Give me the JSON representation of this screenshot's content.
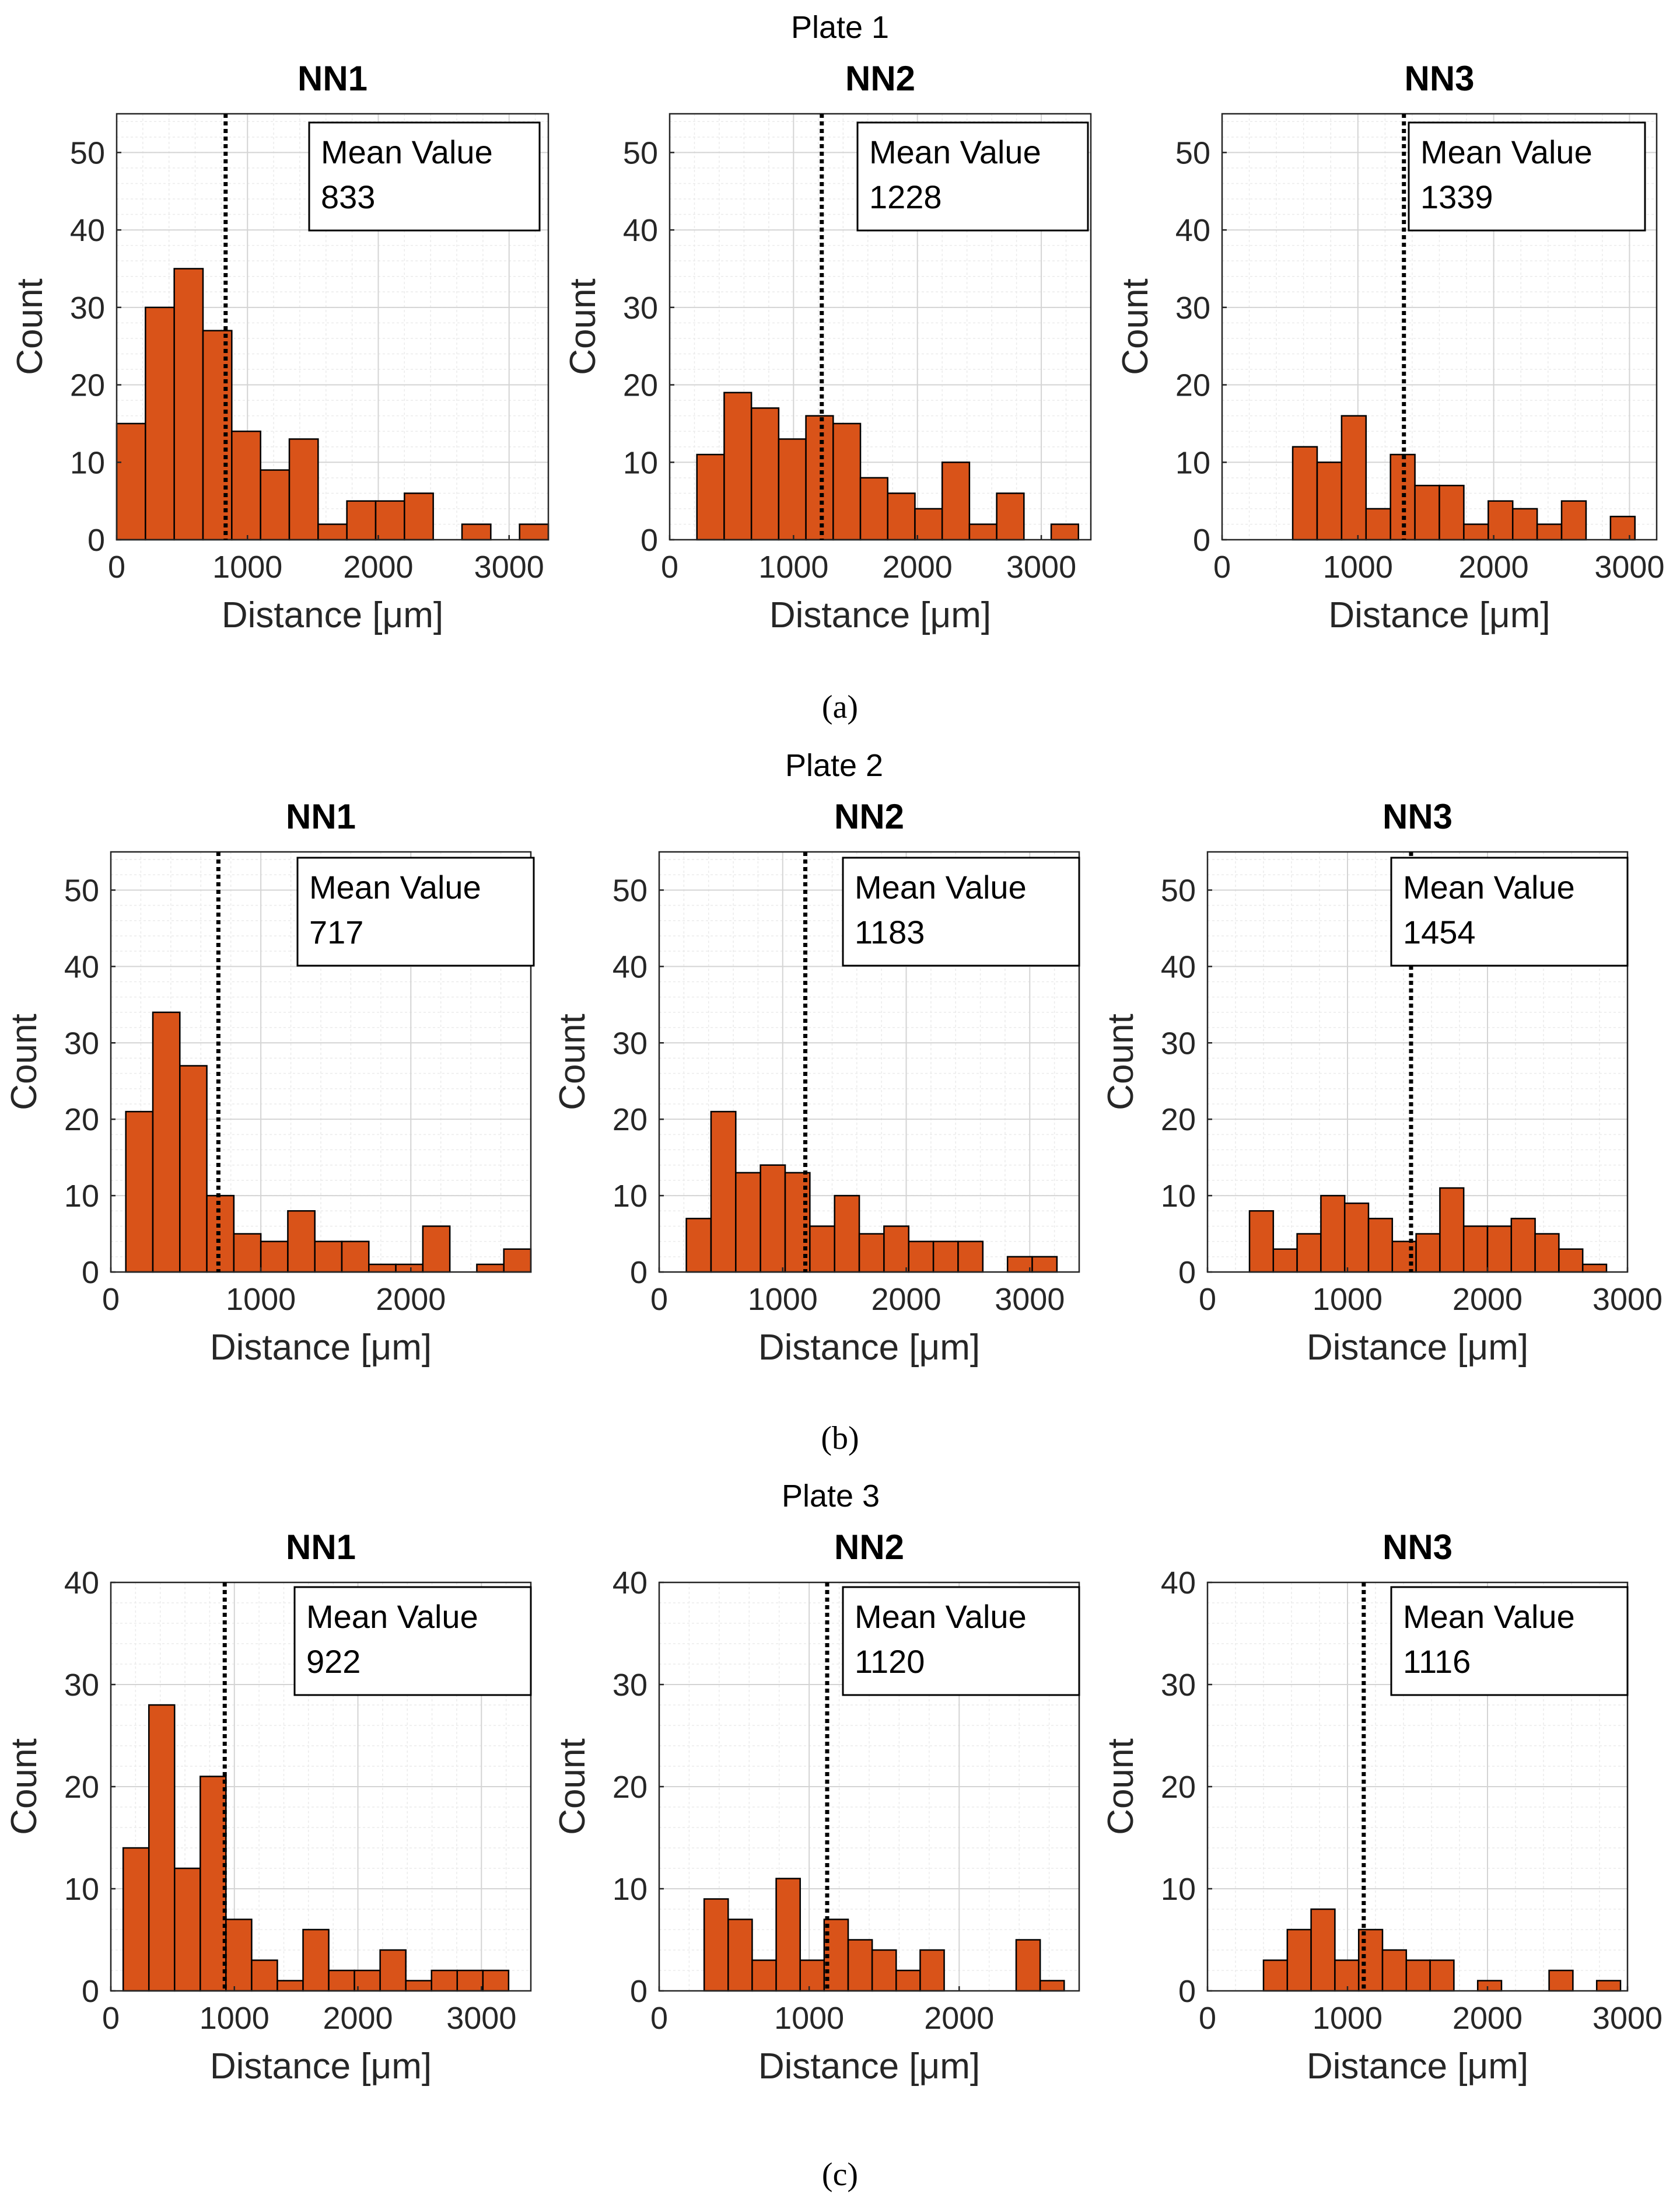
{
  "plates": [
    {
      "title": "Plate 1",
      "label": "(a)"
    },
    {
      "title": "Plate 2",
      "label": "(b)"
    },
    {
      "title": "Plate 3",
      "label": "(c)"
    }
  ],
  "chart_data": [
    {
      "type": "bar",
      "plate": "Plate 1",
      "title": "NN1",
      "xlabel": "Distance [μm]",
      "ylabel": "Count",
      "xlim": [
        0,
        3300
      ],
      "ylim": [
        0,
        55
      ],
      "xticks": [
        0,
        1000,
        2000,
        3000
      ],
      "yticks": [
        0,
        10,
        20,
        30,
        40,
        50
      ],
      "bin_width": 220,
      "bin_start": 0,
      "values": [
        15,
        30,
        35,
        27,
        14,
        9,
        13,
        2,
        5,
        5,
        6,
        0,
        2,
        0,
        2
      ],
      "mean_label": "Mean Value",
      "mean_value": 833
    },
    {
      "type": "bar",
      "plate": "Plate 1",
      "title": "NN2",
      "xlabel": "Distance [μm]",
      "ylabel": "Count",
      "xlim": [
        0,
        3400
      ],
      "ylim": [
        0,
        55
      ],
      "xticks": [
        0,
        1000,
        2000,
        3000
      ],
      "yticks": [
        0,
        10,
        20,
        30,
        40,
        50
      ],
      "bin_width": 220,
      "bin_start": 220,
      "values": [
        11,
        19,
        17,
        13,
        16,
        15,
        8,
        6,
        4,
        10,
        2,
        6,
        0,
        2
      ],
      "mean_label": "Mean Value",
      "mean_value": 1228
    },
    {
      "type": "bar",
      "plate": "Plate 1",
      "title": "NN3",
      "xlabel": "Distance [μm]",
      "ylabel": "Count",
      "xlim": [
        0,
        3200
      ],
      "ylim": [
        0,
        55
      ],
      "xticks": [
        0,
        1000,
        2000,
        3000
      ],
      "yticks": [
        0,
        10,
        20,
        30,
        40,
        50
      ],
      "bin_width": 180,
      "bin_start": 520,
      "values": [
        12,
        10,
        16,
        4,
        11,
        7,
        7,
        2,
        5,
        4,
        2,
        5,
        0,
        3
      ],
      "mean_label": "Mean Value",
      "mean_value": 1339
    },
    {
      "type": "bar",
      "plate": "Plate 2",
      "title": "NN1",
      "xlabel": "Distance [μm]",
      "ylabel": "Count",
      "xlim": [
        0,
        2800
      ],
      "ylim": [
        0,
        55
      ],
      "xticks": [
        0,
        1000,
        2000
      ],
      "yticks": [
        0,
        10,
        20,
        30,
        40,
        50
      ],
      "bin_width": 180,
      "bin_start": 100,
      "values": [
        21,
        34,
        27,
        10,
        5,
        4,
        8,
        4,
        4,
        1,
        1,
        6,
        0,
        1,
        3
      ],
      "mean_label": "Mean Value",
      "mean_value": 717
    },
    {
      "type": "bar",
      "plate": "Plate 2",
      "title": "NN2",
      "xlabel": "Distance [μm]",
      "ylabel": "Count",
      "xlim": [
        0,
        3400
      ],
      "ylim": [
        0,
        55
      ],
      "xticks": [
        0,
        1000,
        2000,
        3000
      ],
      "yticks": [
        0,
        10,
        20,
        30,
        40,
        50
      ],
      "bin_width": 200,
      "bin_start": 220,
      "values": [
        7,
        21,
        13,
        14,
        13,
        6,
        10,
        5,
        6,
        4,
        4,
        4,
        0,
        2,
        2
      ],
      "mean_label": "Mean Value",
      "mean_value": 1183
    },
    {
      "type": "bar",
      "plate": "Plate 2",
      "title": "NN3",
      "xlabel": "Distance [μm]",
      "ylabel": "Count",
      "xlim": [
        0,
        3000
      ],
      "ylim": [
        0,
        55
      ],
      "xticks": [
        0,
        1000,
        2000,
        3000
      ],
      "yticks": [
        0,
        10,
        20,
        30,
        40,
        50
      ],
      "bin_width": 170,
      "bin_start": 300,
      "values": [
        8,
        3,
        5,
        10,
        9,
        7,
        4,
        5,
        11,
        6,
        6,
        7,
        5,
        3,
        1
      ],
      "mean_label": "Mean Value",
      "mean_value": 1454
    },
    {
      "type": "bar",
      "plate": "Plate 3",
      "title": "NN1",
      "xlabel": "Distance [μm]",
      "ylabel": "Count",
      "xlim": [
        0,
        3400
      ],
      "ylim": [
        0,
        40
      ],
      "xticks": [
        0,
        1000,
        2000,
        3000
      ],
      "yticks": [
        0,
        10,
        20,
        30,
        40
      ],
      "bin_width": 208,
      "bin_start": 100,
      "values": [
        14,
        28,
        12,
        21,
        7,
        3,
        1,
        6,
        2,
        2,
        4,
        1,
        2,
        2,
        2
      ],
      "mean_label": "Mean Value",
      "mean_value": 922
    },
    {
      "type": "bar",
      "plate": "Plate 3",
      "title": "NN2",
      "xlabel": "Distance [μm]",
      "ylabel": "Count",
      "xlim": [
        0,
        2800
      ],
      "ylim": [
        0,
        40
      ],
      "xticks": [
        0,
        1000,
        2000
      ],
      "yticks": [
        0,
        10,
        20,
        30,
        40
      ],
      "bin_width": 160,
      "bin_start": 300,
      "values": [
        9,
        7,
        3,
        11,
        3,
        7,
        5,
        4,
        2,
        4,
        0,
        0,
        0,
        5,
        1
      ],
      "mean_label": "Mean Value",
      "mean_value": 1120
    },
    {
      "type": "bar",
      "plate": "Plate 3",
      "title": "NN3",
      "xlabel": "Distance [μm]",
      "ylabel": "Count",
      "xlim": [
        0,
        3000
      ],
      "ylim": [
        0,
        40
      ],
      "xticks": [
        0,
        1000,
        2000,
        3000
      ],
      "yticks": [
        0,
        10,
        20,
        30,
        40
      ],
      "bin_width": 170,
      "bin_start": 400,
      "values": [
        3,
        6,
        8,
        3,
        6,
        4,
        3,
        3,
        0,
        1,
        0,
        0,
        2,
        0,
        1
      ],
      "mean_label": "Mean Value",
      "mean_value": 1116
    }
  ]
}
